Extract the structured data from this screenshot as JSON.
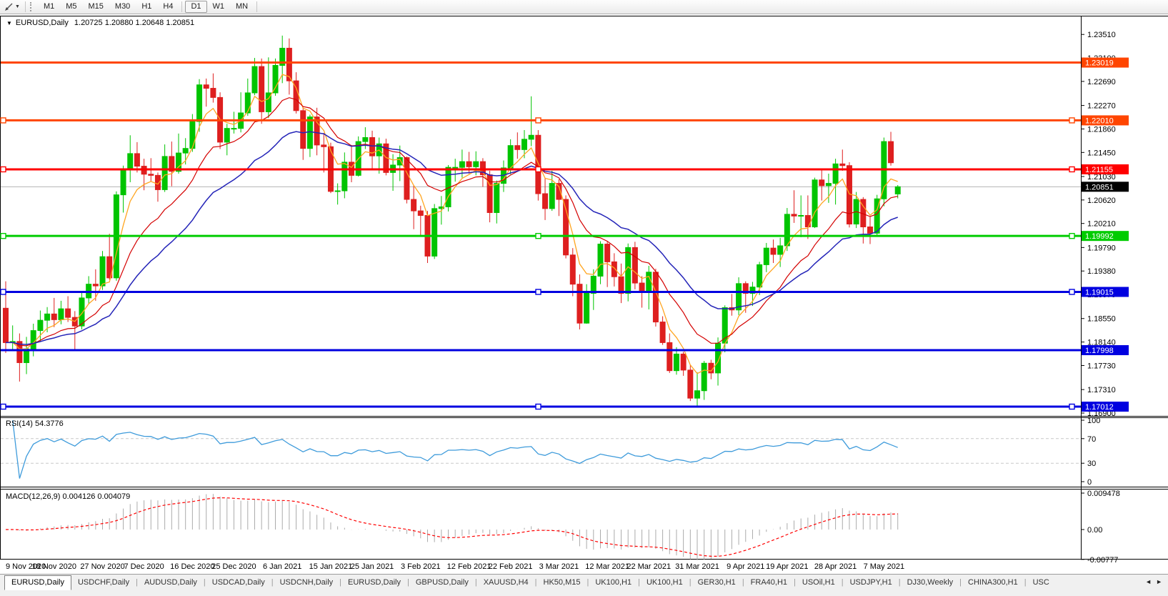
{
  "toolbar": {
    "timeframes": [
      "M1",
      "M5",
      "M15",
      "M30",
      "H1",
      "H4",
      "D1",
      "W1",
      "MN"
    ],
    "active_timeframe": "D1"
  },
  "chart": {
    "title": "EURUSD,Daily",
    "quote_text": "1.20725 1.20880 1.20648 1.20851"
  },
  "indicators": {
    "rsi_label": "RSI(14) 54.3776",
    "macd_label": "MACD(12,26,9) 0.004126 0.004079"
  },
  "tabs": {
    "items": [
      "EURUSD,Daily",
      "USDCHF,Daily",
      "AUDUSD,Daily",
      "USDCAD,Daily",
      "USDCNH,Daily",
      "EURUSD,Daily",
      "GBPUSD,Daily",
      "XAUUSD,H4",
      "HK50,M15",
      "UK100,H1",
      "UK100,H1",
      "GER30,H1",
      "FRA40,H1",
      "USOil,H1",
      "USDJPY,H1",
      "DJ30,Weekly",
      "CHINA300,H1",
      "USC"
    ],
    "active_index": 0,
    "scroll_left": "◄",
    "scroll_right": "►"
  },
  "chart_data": {
    "type": "candlestick",
    "symbol": "EURUSD",
    "timeframe": "Daily",
    "colors": {
      "up": "#00C400",
      "down": "#DE1F1F",
      "ma_fast": "#FFA520",
      "ma_mid": "#D40000",
      "ma_slow": "#2424B8",
      "rsi": "#3E9BDB",
      "level_dash": "#C8C8C8",
      "macd_hist": "#ABABAB",
      "macd_signal": "#FF0000",
      "current_line": "#B4B4B4",
      "current_label_bg": "#000000"
    },
    "price_axis": {
      "min": 1.1685,
      "max": 1.23837,
      "ticks": [
        "1.23510",
        "1.23100",
        "1.22690",
        "1.22270",
        "1.21860",
        "1.21450",
        "1.21030",
        "1.20620",
        "1.20210",
        "1.19790",
        "1.19380",
        "1.18970",
        "1.18550",
        "1.18140",
        "1.17730",
        "1.17310",
        "1.16900"
      ]
    },
    "x_axis": {
      "dates": [
        {
          "label": "9 Nov 2020",
          "i": 0
        },
        {
          "label": "18 Nov 2020",
          "i": 7
        },
        {
          "label": "27 Nov 2020",
          "i": 14
        },
        {
          "label": "7 Dec 2020",
          "i": 20
        },
        {
          "label": "16 Dec 2020",
          "i": 27
        },
        {
          "label": "25 Dec 2020",
          "i": 33
        },
        {
          "label": "6 Jan 2021",
          "i": 40
        },
        {
          "label": "15 Jan 2021",
          "i": 47
        },
        {
          "label": "25 Jan 2021",
          "i": 53
        },
        {
          "label": "3 Feb 2021",
          "i": 60
        },
        {
          "label": "12 Feb 2021",
          "i": 67
        },
        {
          "label": "22 Feb 2021",
          "i": 73
        },
        {
          "label": "3 Mar 2021",
          "i": 80
        },
        {
          "label": "12 Mar 2021",
          "i": 87
        },
        {
          "label": "22 Mar 2021",
          "i": 93
        },
        {
          "label": "31 Mar 2021",
          "i": 100
        },
        {
          "label": "9 Apr 2021",
          "i": 107
        },
        {
          "label": "19 Apr 2021",
          "i": 113
        },
        {
          "label": "28 Apr 2021",
          "i": 120
        },
        {
          "label": "7 May 2021",
          "i": 127
        }
      ]
    },
    "candles": [
      [
        1.1873,
        1.192,
        1.1795,
        1.1813
      ],
      [
        1.1813,
        1.1843,
        1.1798,
        1.1815
      ],
      [
        1.1815,
        1.1829,
        1.1745,
        1.1778
      ],
      [
        1.1778,
        1.1823,
        1.1758,
        1.1802
      ],
      [
        1.1802,
        1.1846,
        1.1789,
        1.1834
      ],
      [
        1.1834,
        1.1869,
        1.1815,
        1.1852
      ],
      [
        1.1852,
        1.1875,
        1.1831,
        1.1863
      ],
      [
        1.1863,
        1.1891,
        1.184,
        1.1853
      ],
      [
        1.1853,
        1.1886,
        1.1845,
        1.1872
      ],
      [
        1.1872,
        1.1894,
        1.1849,
        1.1857
      ],
      [
        1.1857,
        1.1868,
        1.18,
        1.1842
      ],
      [
        1.1842,
        1.1903,
        1.1836,
        1.1891
      ],
      [
        1.1891,
        1.1929,
        1.1881,
        1.1915
      ],
      [
        1.1915,
        1.1941,
        1.1886,
        1.1912
      ],
      [
        1.1912,
        1.1973,
        1.1905,
        1.1963
      ],
      [
        1.1963,
        1.2003,
        1.1923,
        1.1926
      ],
      [
        1.1926,
        1.2077,
        1.1921,
        1.2071
      ],
      [
        1.2071,
        1.2122,
        1.204,
        1.2115
      ],
      [
        1.2115,
        1.2175,
        1.2093,
        1.2143
      ],
      [
        1.2143,
        1.2163,
        1.211,
        1.2121
      ],
      [
        1.2121,
        1.2134,
        1.2079,
        1.2107
      ],
      [
        1.2107,
        1.2135,
        1.2094,
        1.2105
      ],
      [
        1.2105,
        1.211,
        1.2059,
        1.208
      ],
      [
        1.208,
        1.2159,
        1.2076,
        1.2138
      ],
      [
        1.2138,
        1.2164,
        1.2086,
        1.2112
      ],
      [
        1.2112,
        1.2178,
        1.2108,
        1.2144
      ],
      [
        1.2144,
        1.217,
        1.2124,
        1.2152
      ],
      [
        1.2152,
        1.2212,
        1.2146,
        1.2199
      ],
      [
        1.2199,
        1.2273,
        1.2181,
        1.2263
      ],
      [
        1.2263,
        1.2274,
        1.2225,
        1.2257
      ],
      [
        1.2257,
        1.2283,
        1.2232,
        1.2241
      ],
      [
        1.2241,
        1.225,
        1.2151,
        1.2163
      ],
      [
        1.2163,
        1.2195,
        1.214,
        1.2187
      ],
      [
        1.2187,
        1.2216,
        1.2178,
        1.2187
      ],
      [
        1.2187,
        1.225,
        1.218,
        1.2214
      ],
      [
        1.2214,
        1.2274,
        1.2209,
        1.2249
      ],
      [
        1.2249,
        1.231,
        1.2245,
        1.2295
      ],
      [
        1.2295,
        1.2309,
        1.2195,
        1.2216
      ],
      [
        1.2216,
        1.2311,
        1.2205,
        1.2249
      ],
      [
        1.2249,
        1.2309,
        1.2244,
        1.2297
      ],
      [
        1.2297,
        1.2349,
        1.2266,
        1.2327
      ],
      [
        1.2327,
        1.2344,
        1.2246,
        1.227
      ],
      [
        1.227,
        1.2285,
        1.2213,
        1.2218
      ],
      [
        1.2218,
        1.2225,
        1.2132,
        1.2152
      ],
      [
        1.2152,
        1.2211,
        1.2137,
        1.2207
      ],
      [
        1.2207,
        1.2223,
        1.214,
        1.2158
      ],
      [
        1.2158,
        1.2179,
        1.211,
        1.2155
      ],
      [
        1.2155,
        1.2162,
        1.2074,
        1.2077
      ],
      [
        1.2077,
        1.2091,
        1.2054,
        1.2078
      ],
      [
        1.2078,
        1.2145,
        1.2065,
        1.2128
      ],
      [
        1.2128,
        1.2158,
        1.2093,
        1.2105
      ],
      [
        1.2105,
        1.2173,
        1.2103,
        1.2164
      ],
      [
        1.2164,
        1.2189,
        1.2151,
        1.2171
      ],
      [
        1.2171,
        1.2183,
        1.2116,
        1.2139
      ],
      [
        1.2139,
        1.2171,
        1.2108,
        1.216
      ],
      [
        1.216,
        1.2169,
        1.2105,
        1.211
      ],
      [
        1.211,
        1.2142,
        1.2078,
        1.2123
      ],
      [
        1.2123,
        1.2157,
        1.2095,
        1.2136
      ],
      [
        1.2136,
        1.2138,
        1.2056,
        1.2063
      ],
      [
        1.2063,
        1.2087,
        1.2011,
        1.2043
      ],
      [
        1.2043,
        1.2052,
        1.1999,
        1.2035
      ],
      [
        1.2035,
        1.2043,
        1.1952,
        1.1964
      ],
      [
        1.1964,
        1.2055,
        1.1959,
        1.2047
      ],
      [
        1.2047,
        1.2069,
        1.2019,
        1.205
      ],
      [
        1.205,
        1.2123,
        1.2042,
        1.2119
      ],
      [
        1.2119,
        1.2134,
        1.2094,
        1.2119
      ],
      [
        1.2119,
        1.215,
        1.2101,
        1.2129
      ],
      [
        1.2129,
        1.2146,
        1.2108,
        1.212
      ],
      [
        1.212,
        1.2147,
        1.2105,
        1.2129
      ],
      [
        1.2129,
        1.2135,
        1.2085,
        1.2106
      ],
      [
        1.2106,
        1.2113,
        1.2023,
        1.204
      ],
      [
        1.204,
        1.2096,
        1.2021,
        1.2091
      ],
      [
        1.2091,
        1.2131,
        1.2076,
        1.2118
      ],
      [
        1.2118,
        1.2168,
        1.2107,
        1.2157
      ],
      [
        1.2157,
        1.218,
        1.2134,
        1.215
      ],
      [
        1.215,
        1.2184,
        1.2135,
        1.2168
      ],
      [
        1.2168,
        1.2243,
        1.2156,
        1.2175
      ],
      [
        1.2175,
        1.2184,
        1.2061,
        1.2073
      ],
      [
        1.2073,
        1.2101,
        1.2027,
        1.2047
      ],
      [
        1.2047,
        1.2113,
        1.2043,
        1.2091
      ],
      [
        1.2091,
        1.2098,
        1.2034,
        1.2063
      ],
      [
        1.2063,
        1.207,
        1.196,
        1.1966
      ],
      [
        1.1966,
        1.1978,
        1.1894,
        1.1915
      ],
      [
        1.1915,
        1.1932,
        1.1836,
        1.1847
      ],
      [
        1.1847,
        1.1915,
        1.1846,
        1.1899
      ],
      [
        1.1899,
        1.1941,
        1.187,
        1.1929
      ],
      [
        1.1929,
        1.199,
        1.1915,
        1.1985
      ],
      [
        1.1985,
        1.1989,
        1.191,
        1.1954
      ],
      [
        1.1954,
        1.1969,
        1.1911,
        1.1928
      ],
      [
        1.1928,
        1.1951,
        1.1882,
        1.1899
      ],
      [
        1.1899,
        1.1986,
        1.1885,
        1.1979
      ],
      [
        1.1979,
        1.1989,
        1.1906,
        1.1917
      ],
      [
        1.1917,
        1.1929,
        1.1874,
        1.1903
      ],
      [
        1.1903,
        1.1947,
        1.1871,
        1.1936
      ],
      [
        1.1936,
        1.1942,
        1.1841,
        1.1849
      ],
      [
        1.1849,
        1.1859,
        1.1809,
        1.1813
      ],
      [
        1.1813,
        1.1829,
        1.176,
        1.1764
      ],
      [
        1.1764,
        1.1805,
        1.1757,
        1.1793
      ],
      [
        1.1793,
        1.1797,
        1.1755,
        1.1765
      ],
      [
        1.1765,
        1.1774,
        1.1711,
        1.1716
      ],
      [
        1.1716,
        1.1761,
        1.17,
        1.1729
      ],
      [
        1.1729,
        1.1781,
        1.1713,
        1.1777
      ],
      [
        1.1777,
        1.1783,
        1.1749,
        1.176
      ],
      [
        1.176,
        1.1822,
        1.1738,
        1.1812
      ],
      [
        1.1812,
        1.1878,
        1.1796,
        1.1874
      ],
      [
        1.1874,
        1.1898,
        1.186,
        1.187
      ],
      [
        1.187,
        1.1927,
        1.1861,
        1.1916
      ],
      [
        1.1916,
        1.192,
        1.1865,
        1.1899
      ],
      [
        1.1899,
        1.1919,
        1.1877,
        1.191
      ],
      [
        1.191,
        1.1954,
        1.1896,
        1.1949
      ],
      [
        1.1949,
        1.1987,
        1.1936,
        1.1978
      ],
      [
        1.1978,
        1.1993,
        1.1952,
        1.1967
      ],
      [
        1.1967,
        1.1996,
        1.1945,
        1.1982
      ],
      [
        1.1982,
        1.2048,
        1.1973,
        1.2037
      ],
      [
        1.2037,
        1.2079,
        1.2022,
        1.2034
      ],
      [
        1.2034,
        1.207,
        1.1997,
        1.2035
      ],
      [
        1.2035,
        1.207,
        1.1994,
        1.2015
      ],
      [
        1.2015,
        1.2101,
        1.2013,
        1.2097
      ],
      [
        1.2097,
        1.2117,
        1.2061,
        1.2087
      ],
      [
        1.2087,
        1.2108,
        1.2057,
        1.2091
      ],
      [
        1.2091,
        1.2134,
        1.2054,
        1.2125
      ],
      [
        1.2125,
        1.215,
        1.2113,
        1.2122
      ],
      [
        1.2122,
        1.2128,
        1.2014,
        1.202
      ],
      [
        1.202,
        1.2076,
        1.2013,
        1.2063
      ],
      [
        1.2063,
        1.2067,
        1.1986,
        1.2015
      ],
      [
        1.2015,
        1.2033,
        1.1985,
        1.2004
      ],
      [
        1.2004,
        1.2071,
        1.2,
        1.2064
      ],
      [
        1.2064,
        1.2171,
        1.2051,
        1.2164
      ],
      [
        1.2164,
        1.2181,
        1.2122,
        1.2127
      ],
      [
        1.20725,
        1.2088,
        1.20648,
        1.20851
      ]
    ],
    "moving_averages": [
      {
        "name": "MA-fast",
        "period": 5,
        "color_key": "ma_fast",
        "width": 1.3
      },
      {
        "name": "MA-mid",
        "period": 13,
        "color_key": "ma_mid",
        "width": 1.2
      },
      {
        "name": "MA-slow",
        "period": 25,
        "color_key": "ma_slow",
        "width": 1.5
      }
    ],
    "hlines": [
      {
        "price": 1.23019,
        "label": "1.23019",
        "color": "#FF4500",
        "width": 3,
        "selected": false
      },
      {
        "price": 1.2201,
        "label": "1.22010",
        "color": "#FF4500",
        "width": 3,
        "selected": true
      },
      {
        "price": 1.21155,
        "label": "1.21155",
        "color": "#FF0000",
        "width": 3,
        "selected": true
      },
      {
        "price": 1.19992,
        "label": "1.19992",
        "color": "#00CC00",
        "width": 3,
        "selected": true
      },
      {
        "price": 1.19015,
        "label": "1.19015",
        "color": "#0000E0",
        "width": 3,
        "selected": true
      },
      {
        "price": 1.17998,
        "label": "1.17998",
        "color": "#0000E0",
        "width": 3,
        "selected": false
      },
      {
        "price": 1.17012,
        "label": "1.17012",
        "color": "#0000E0",
        "width": 3,
        "selected": true
      }
    ],
    "current_price": {
      "value": 1.20851,
      "label": "1.20851"
    },
    "rsi": {
      "period": 14,
      "levels": [
        {
          "v": 100,
          "label": "100",
          "dashed": false
        },
        {
          "v": 70,
          "label": "70",
          "dashed": true
        },
        {
          "v": 30,
          "label": "30",
          "dashed": true
        },
        {
          "v": 0,
          "label": "0",
          "dashed": false
        }
      ]
    },
    "macd": {
      "fast": 12,
      "slow": 26,
      "signal": 9,
      "axis": [
        {
          "v": 0.009478,
          "label": "0.009478"
        },
        {
          "v": 0,
          "label": "0.00"
        },
        {
          "v": -0.00777,
          "label": "-0.00777"
        }
      ]
    }
  }
}
